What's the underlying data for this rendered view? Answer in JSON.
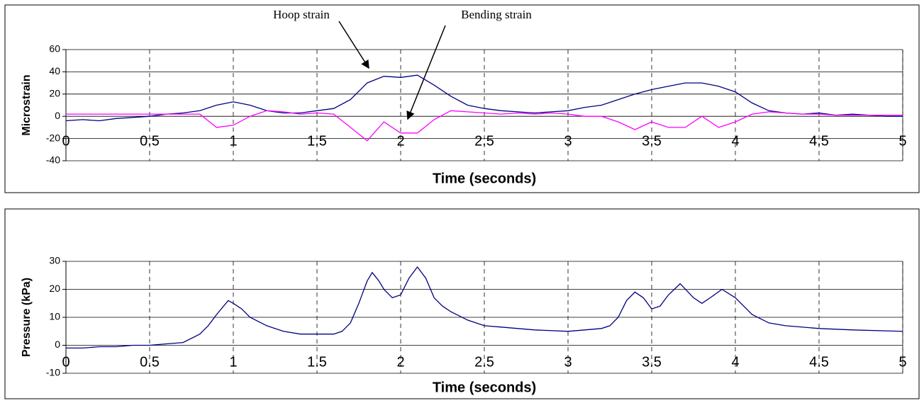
{
  "chart_data": [
    {
      "type": "line",
      "y_label": "Microstrain",
      "x_label": "Time (seconds)",
      "x": [
        0,
        0.1,
        0.2,
        0.3,
        0.4,
        0.5,
        0.6,
        0.7,
        0.8,
        0.9,
        1.0,
        1.1,
        1.2,
        1.3,
        1.4,
        1.5,
        1.6,
        1.7,
        1.8,
        1.9,
        2.0,
        2.1,
        2.2,
        2.3,
        2.4,
        2.5,
        2.6,
        2.7,
        2.8,
        2.9,
        3.0,
        3.1,
        3.2,
        3.3,
        3.4,
        3.5,
        3.6,
        3.7,
        3.8,
        3.9,
        4.0,
        4.1,
        4.2,
        4.3,
        4.4,
        4.5,
        4.6,
        4.7,
        4.8,
        4.9,
        5.0
      ],
      "series": [
        {
          "name": "Hoop strain",
          "color": "#000080",
          "values": [
            -4,
            -3,
            -4,
            -2,
            -1,
            0,
            2,
            3,
            5,
            10,
            13,
            10,
            5,
            3,
            3,
            5,
            7,
            15,
            30,
            36,
            35,
            37,
            28,
            18,
            10,
            7,
            5,
            4,
            3,
            4,
            5,
            8,
            10,
            15,
            20,
            24,
            27,
            30,
            30,
            27,
            22,
            12,
            5,
            3,
            2,
            3,
            1,
            2,
            1,
            0,
            0
          ]
        },
        {
          "name": "Bending strain",
          "color": "#ff00ff",
          "values": [
            2,
            2,
            2,
            2,
            2,
            2,
            2,
            2,
            2,
            -10,
            -8,
            0,
            5,
            4,
            2,
            3,
            2,
            -10,
            -22,
            -5,
            -15,
            -15,
            -3,
            5,
            4,
            3,
            2,
            3,
            2,
            3,
            2,
            0,
            0,
            -5,
            -12,
            -5,
            -10,
            -10,
            0,
            -10,
            -5,
            2,
            4,
            3,
            2,
            2,
            1,
            1,
            1,
            1,
            1
          ]
        }
      ],
      "xlim": [
        0,
        5
      ],
      "xticks": [
        0,
        0.5,
        1,
        1.5,
        2,
        2.5,
        3,
        3.5,
        4,
        4.5,
        5
      ],
      "ylim": [
        -40,
        60
      ],
      "yticks": [
        -40,
        -20,
        0,
        20,
        40,
        60
      ],
      "grid": true
    },
    {
      "type": "line",
      "y_label": "Pressure (kPa)",
      "x_label": "Time (seconds)",
      "x": [
        0,
        0.1,
        0.2,
        0.3,
        0.4,
        0.5,
        0.6,
        0.7,
        0.8,
        0.85,
        0.9,
        0.97,
        1.0,
        1.05,
        1.1,
        1.2,
        1.3,
        1.4,
        1.5,
        1.6,
        1.65,
        1.7,
        1.75,
        1.8,
        1.83,
        1.87,
        1.9,
        1.95,
        2.0,
        2.05,
        2.1,
        2.15,
        2.2,
        2.25,
        2.3,
        2.4,
        2.5,
        2.6,
        2.8,
        3.0,
        3.2,
        3.25,
        3.3,
        3.35,
        3.4,
        3.45,
        3.5,
        3.55,
        3.6,
        3.67,
        3.75,
        3.8,
        3.85,
        3.92,
        4.0,
        4.05,
        4.1,
        4.2,
        4.3,
        4.5,
        4.7,
        5.0
      ],
      "series": [
        {
          "name": "Pressure",
          "color": "#000080",
          "values": [
            -1,
            -1,
            -0.5,
            -0.5,
            0,
            0,
            0.5,
            1,
            4,
            7,
            11,
            16,
            15,
            13,
            10,
            7,
            5,
            4,
            4,
            4,
            5,
            8,
            15,
            23,
            26,
            23,
            20,
            17,
            18,
            24,
            28,
            24,
            17,
            14,
            12,
            9,
            7,
            6.5,
            5.5,
            5,
            6,
            7,
            10,
            16,
            19,
            17,
            13,
            14,
            18,
            22,
            17,
            15,
            17,
            20,
            17,
            14,
            11,
            8,
            7,
            6,
            5.5,
            5
          ]
        }
      ],
      "xlim": [
        0,
        5
      ],
      "xticks": [
        0,
        0.5,
        1,
        1.5,
        2,
        2.5,
        3,
        3.5,
        4,
        4.5,
        5
      ],
      "ylim": [
        -10,
        30
      ],
      "yticks": [
        -10,
        0,
        10,
        20,
        30
      ],
      "grid": true
    }
  ]
}
